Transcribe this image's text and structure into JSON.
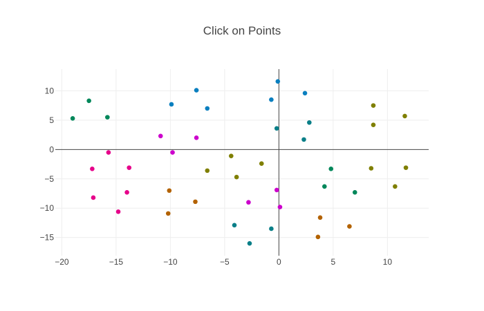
{
  "chart_data": {
    "type": "scatter",
    "title": "Click on Points",
    "xlabel": "",
    "ylabel": "",
    "xlim": [
      -20.6,
      13.8
    ],
    "ylim": [
      -18.1,
      13.7
    ],
    "x_ticks": [
      -20,
      -15,
      -10,
      -5,
      0,
      5,
      10
    ],
    "y_ticks": [
      -15,
      -10,
      -5,
      0,
      5,
      10
    ],
    "x_tick_labels": [
      "−20",
      "−15",
      "−10",
      "−5",
      "0",
      "5",
      "10"
    ],
    "y_tick_labels": [
      "−15",
      "−10",
      "−5",
      "0",
      "5",
      "10"
    ],
    "grid": true,
    "zero_lines": true,
    "legend": "none",
    "points": [
      {
        "x": -17.5,
        "y": 8.3,
        "color": "#00875a"
      },
      {
        "x": -19.0,
        "y": 5.3,
        "color": "#00875a"
      },
      {
        "x": -15.8,
        "y": 5.5,
        "color": "#00875a"
      },
      {
        "x": -7.6,
        "y": 10.1,
        "color": "#0a7fbf"
      },
      {
        "x": -9.9,
        "y": 7.7,
        "color": "#0a7fbf"
      },
      {
        "x": -6.6,
        "y": 7.0,
        "color": "#0a7fbf"
      },
      {
        "x": -0.1,
        "y": 11.6,
        "color": "#0a7fbf"
      },
      {
        "x": 2.4,
        "y": 9.6,
        "color": "#0a7fbf"
      },
      {
        "x": -0.7,
        "y": 8.5,
        "color": "#0a7fbf"
      },
      {
        "x": 2.8,
        "y": 4.6,
        "color": "#0a7f88"
      },
      {
        "x": -0.2,
        "y": 3.6,
        "color": "#0a7f88"
      },
      {
        "x": 2.3,
        "y": 1.7,
        "color": "#0a7f88"
      },
      {
        "x": 8.7,
        "y": 7.5,
        "color": "#7f7f00"
      },
      {
        "x": 11.6,
        "y": 5.7,
        "color": "#7f7f00"
      },
      {
        "x": 8.7,
        "y": 4.2,
        "color": "#7f7f00"
      },
      {
        "x": -10.9,
        "y": 2.3,
        "color": "#cc00cc"
      },
      {
        "x": -7.6,
        "y": 2.0,
        "color": "#cc00cc"
      },
      {
        "x": -9.8,
        "y": -0.5,
        "color": "#cc00cc"
      },
      {
        "x": -15.7,
        "y": -0.5,
        "color": "#e6008a"
      },
      {
        "x": -17.2,
        "y": -3.3,
        "color": "#e6008a"
      },
      {
        "x": -13.8,
        "y": -3.1,
        "color": "#e6008a"
      },
      {
        "x": -17.1,
        "y": -8.2,
        "color": "#e6008a"
      },
      {
        "x": -14.0,
        "y": -7.3,
        "color": "#e6008a"
      },
      {
        "x": -14.8,
        "y": -10.6,
        "color": "#e6008a"
      },
      {
        "x": -4.4,
        "y": -1.1,
        "color": "#7f7f00"
      },
      {
        "x": -1.6,
        "y": -2.4,
        "color": "#7f7f00"
      },
      {
        "x": -6.6,
        "y": -3.6,
        "color": "#7f7f00"
      },
      {
        "x": -3.9,
        "y": -4.7,
        "color": "#7f7f00"
      },
      {
        "x": 4.8,
        "y": -3.3,
        "color": "#00875a"
      },
      {
        "x": 4.2,
        "y": -6.3,
        "color": "#00875a"
      },
      {
        "x": 7.0,
        "y": -7.3,
        "color": "#00875a"
      },
      {
        "x": 8.5,
        "y": -3.2,
        "color": "#7f7f00"
      },
      {
        "x": 11.7,
        "y": -3.1,
        "color": "#7f7f00"
      },
      {
        "x": 10.7,
        "y": -6.3,
        "color": "#7f7f00"
      },
      {
        "x": -10.1,
        "y": -7.0,
        "color": "#b36200"
      },
      {
        "x": -7.7,
        "y": -8.9,
        "color": "#b36200"
      },
      {
        "x": -10.2,
        "y": -10.9,
        "color": "#b36200"
      },
      {
        "x": -0.2,
        "y": -6.9,
        "color": "#cc00cc"
      },
      {
        "x": -2.8,
        "y": -9.0,
        "color": "#cc00cc"
      },
      {
        "x": 0.1,
        "y": -9.8,
        "color": "#cc00cc"
      },
      {
        "x": 3.8,
        "y": -11.6,
        "color": "#b36200"
      },
      {
        "x": 6.5,
        "y": -13.1,
        "color": "#b36200"
      },
      {
        "x": 3.6,
        "y": -14.9,
        "color": "#b36200"
      },
      {
        "x": -4.1,
        "y": -12.9,
        "color": "#0a7f88"
      },
      {
        "x": -0.7,
        "y": -13.5,
        "color": "#0a7f88"
      },
      {
        "x": -2.7,
        "y": -16.0,
        "color": "#0a7f88"
      }
    ]
  }
}
